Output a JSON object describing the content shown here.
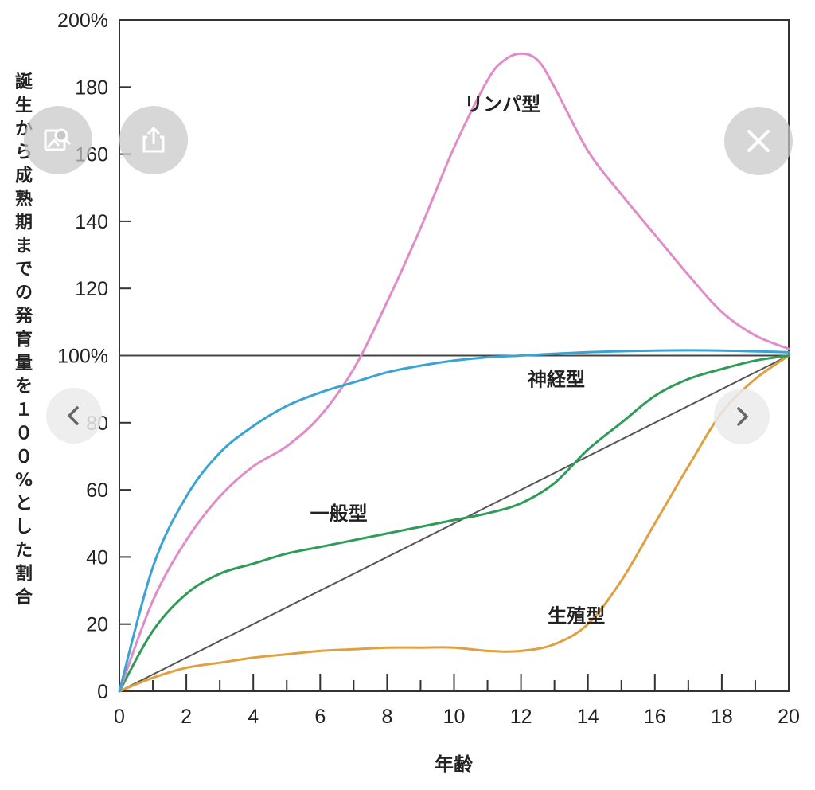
{
  "chart_data": {
    "type": "line",
    "xlabel": "年齢",
    "ylabel": "誕生から成熟期までの発育量を１００%とした割合",
    "xlim": [
      0,
      20
    ],
    "ylim": [
      0,
      200
    ],
    "x_ticks": [
      "0",
      "2",
      "4",
      "6",
      "8",
      "10",
      "12",
      "14",
      "16",
      "18",
      "20"
    ],
    "y_ticks": [
      {
        "value": 0,
        "label": "0"
      },
      {
        "value": 20,
        "label": "20"
      },
      {
        "value": 40,
        "label": "40"
      },
      {
        "value": 60,
        "label": "60"
      },
      {
        "value": 80,
        "label": "80"
      },
      {
        "value": 100,
        "label": "100%"
      },
      {
        "value": 120,
        "label": "120"
      },
      {
        "value": 140,
        "label": "140"
      },
      {
        "value": 160,
        "label": "160"
      },
      {
        "value": 180,
        "label": "180"
      },
      {
        "value": 200,
        "label": "200%"
      }
    ],
    "reference_line": 100,
    "series": [
      {
        "name": "リンパ型",
        "color": "#e08cc8",
        "x": [
          0,
          1,
          2,
          3,
          4,
          5,
          6,
          7,
          8,
          9,
          10,
          11,
          11.5,
          12,
          12.5,
          13,
          14,
          15,
          16,
          17,
          18,
          19,
          20
        ],
        "y": [
          0,
          27,
          45,
          58,
          67,
          73,
          82,
          96,
          116,
          138,
          162,
          182,
          188,
          190,
          188,
          180,
          161,
          148,
          136,
          124,
          113,
          106,
          102
        ]
      },
      {
        "name": "神経型",
        "color": "#3aa3d4",
        "x": [
          0,
          1,
          2,
          3,
          4,
          5,
          6,
          7,
          8,
          9,
          10,
          11,
          12,
          14,
          16,
          18,
          20
        ],
        "y": [
          0,
          37,
          58,
          71,
          79,
          85,
          89,
          92,
          95,
          97,
          98.5,
          99.5,
          100,
          101,
          101.5,
          101.5,
          101
        ]
      },
      {
        "name": "一般型",
        "color": "#2e9c58",
        "x": [
          0,
          1,
          2,
          3,
          4,
          5,
          6,
          7,
          8,
          9,
          10,
          11,
          12,
          13,
          14,
          15,
          16,
          17,
          18,
          19,
          20
        ],
        "y": [
          0,
          18,
          29,
          35,
          38,
          41,
          43,
          45,
          47,
          49,
          51,
          53,
          56,
          62,
          72,
          80,
          88,
          93,
          96,
          98.5,
          100
        ]
      },
      {
        "name": "生殖型",
        "color": "#e0a040",
        "x": [
          0,
          1,
          2,
          3,
          4,
          5,
          6,
          7,
          8,
          9,
          10,
          11,
          12,
          13,
          14,
          15,
          16,
          17,
          18,
          19,
          20
        ],
        "y": [
          0,
          4,
          7,
          8.5,
          10,
          11,
          12,
          12.5,
          13,
          13,
          13,
          12,
          12,
          14,
          20,
          33,
          50,
          67,
          83,
          93,
          100
        ]
      }
    ],
    "diagonal": {
      "color": "#555555",
      "x": [
        0,
        20
      ],
      "y": [
        0,
        100
      ]
    },
    "labels": [
      {
        "text": "リンパ型",
        "x": 10.3,
        "y": 173
      },
      {
        "text": "神経型",
        "x": 12.2,
        "y": 91
      },
      {
        "text": "一般型",
        "x": 5.7,
        "y": 51
      },
      {
        "text": "生殖型",
        "x": 12.8,
        "y": 20.5
      }
    ],
    "grid": false
  },
  "overlay": {
    "icons": {
      "search": "image-search-icon",
      "share": "share-icon",
      "close": "close-icon",
      "prev": "chevron-left-icon",
      "next": "chevron-right-icon"
    }
  }
}
